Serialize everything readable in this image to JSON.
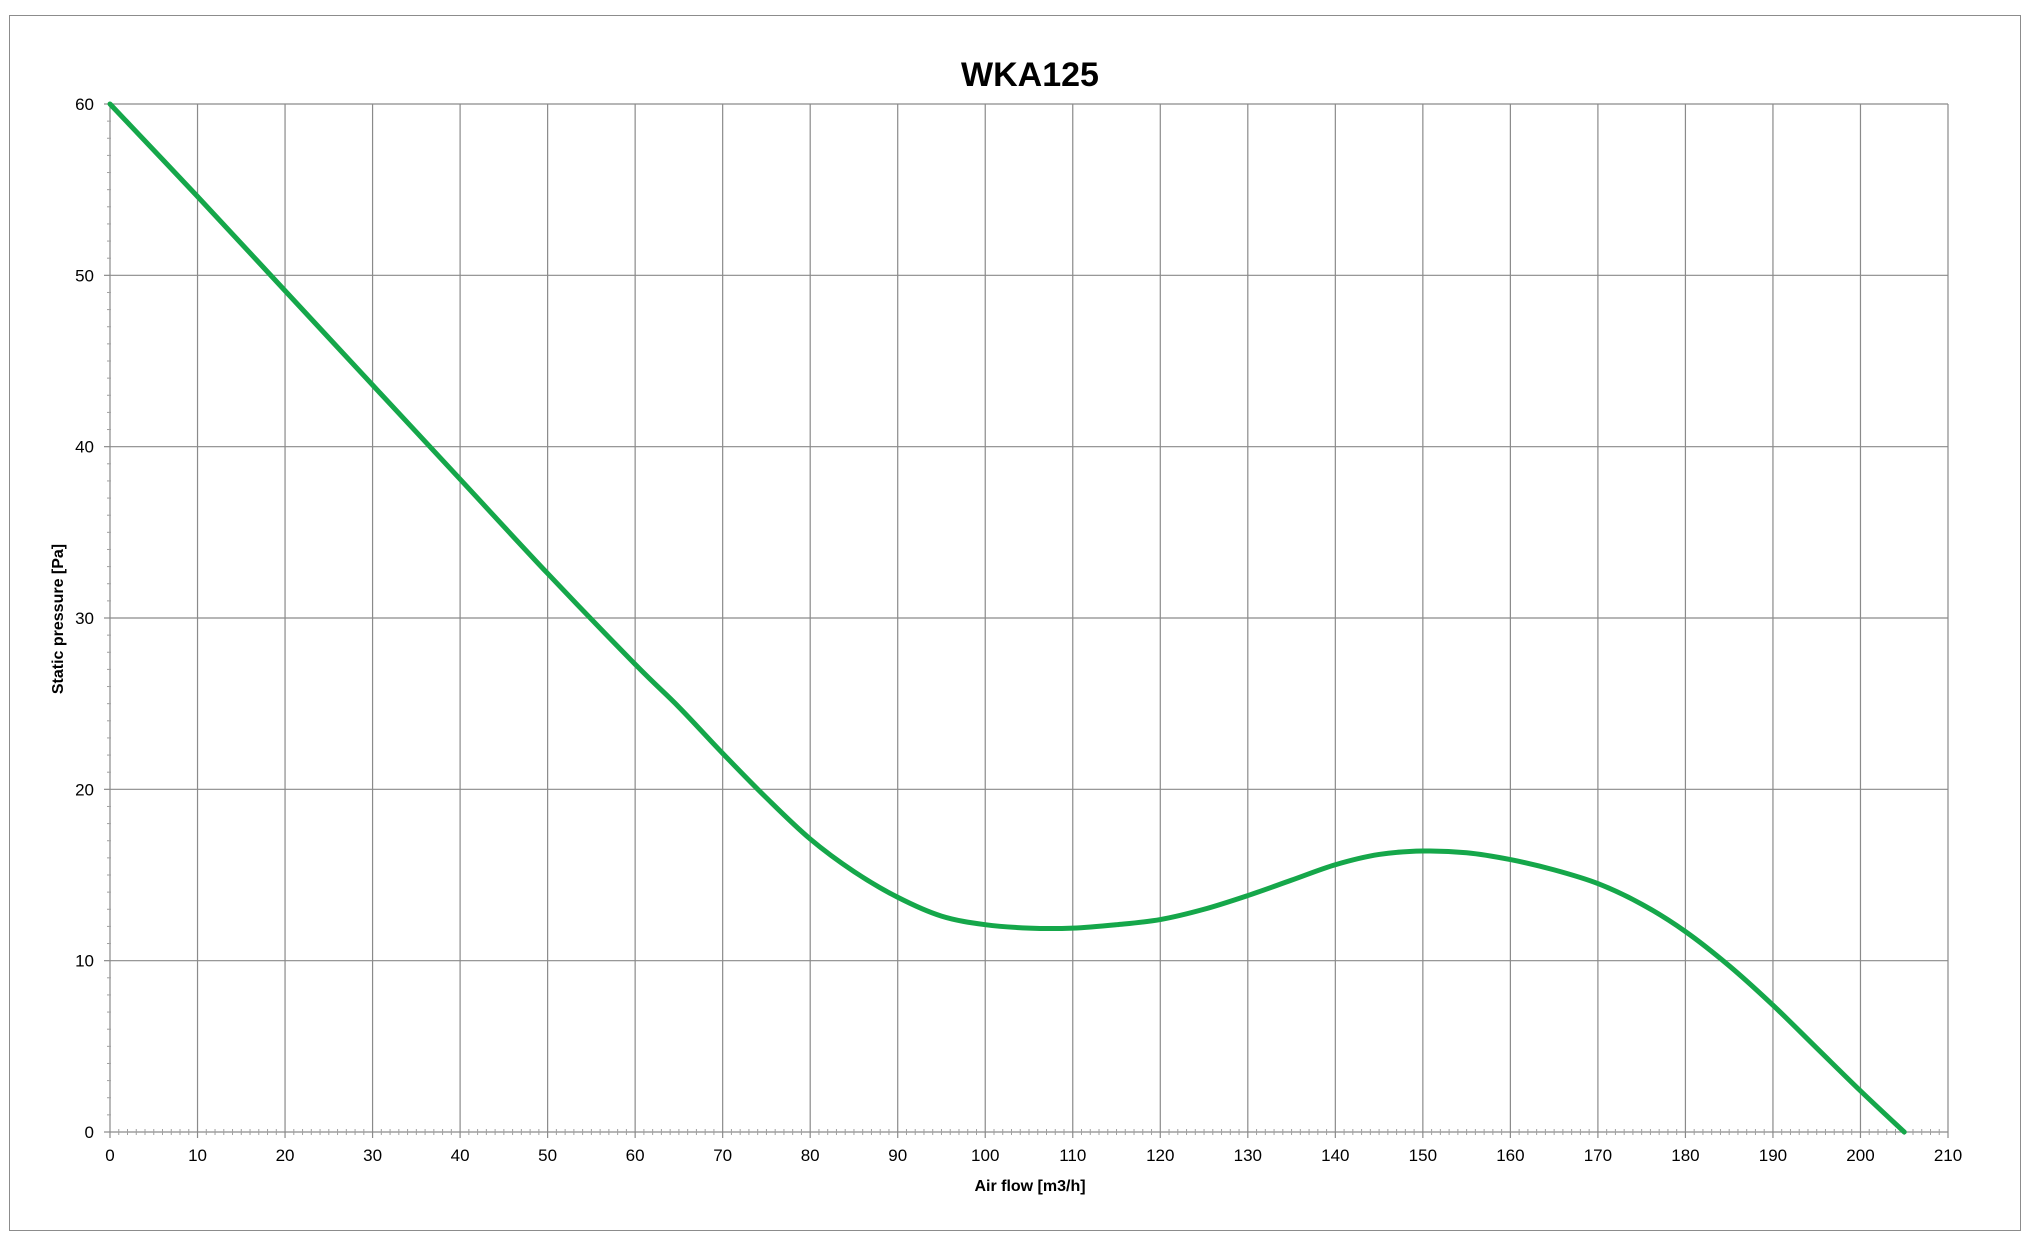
{
  "colors": {
    "series": "#15a74a",
    "grid": "#8a8a8a",
    "frame": "#8c8c8c",
    "background": "#ffffff"
  },
  "chart_data": {
    "type": "line",
    "title": "WKA125",
    "xlabel": "Air flow [m3/h]",
    "ylabel": "Static pressure [Pa]",
    "xlim": [
      0,
      210
    ],
    "ylim": [
      0,
      60
    ],
    "x_ticks": [
      0,
      10,
      20,
      30,
      40,
      50,
      60,
      70,
      80,
      90,
      100,
      110,
      120,
      130,
      140,
      150,
      160,
      170,
      180,
      190,
      200,
      210
    ],
    "y_ticks": [
      0,
      10,
      20,
      30,
      40,
      50,
      60
    ],
    "grid": true,
    "legend": "none",
    "series": [
      {
        "x": [
          0,
          10,
          20,
          30,
          40,
          50,
          60,
          65,
          70,
          75,
          80,
          85,
          90,
          95,
          100,
          105,
          110,
          115,
          120,
          125,
          130,
          135,
          140,
          145,
          150,
          155,
          160,
          165,
          170,
          175,
          180,
          185,
          190,
          195,
          200,
          205
        ],
        "y": [
          60,
          54.6,
          49.1,
          43.6,
          38.1,
          32.6,
          27.3,
          24.8,
          22.1,
          19.5,
          17.1,
          15.2,
          13.7,
          12.6,
          12.1,
          11.9,
          11.9,
          12.1,
          12.4,
          13.0,
          13.8,
          14.7,
          15.6,
          16.2,
          16.4,
          16.3,
          15.9,
          15.3,
          14.5,
          13.3,
          11.7,
          9.7,
          7.4,
          4.9,
          2.4,
          0
        ]
      }
    ]
  }
}
